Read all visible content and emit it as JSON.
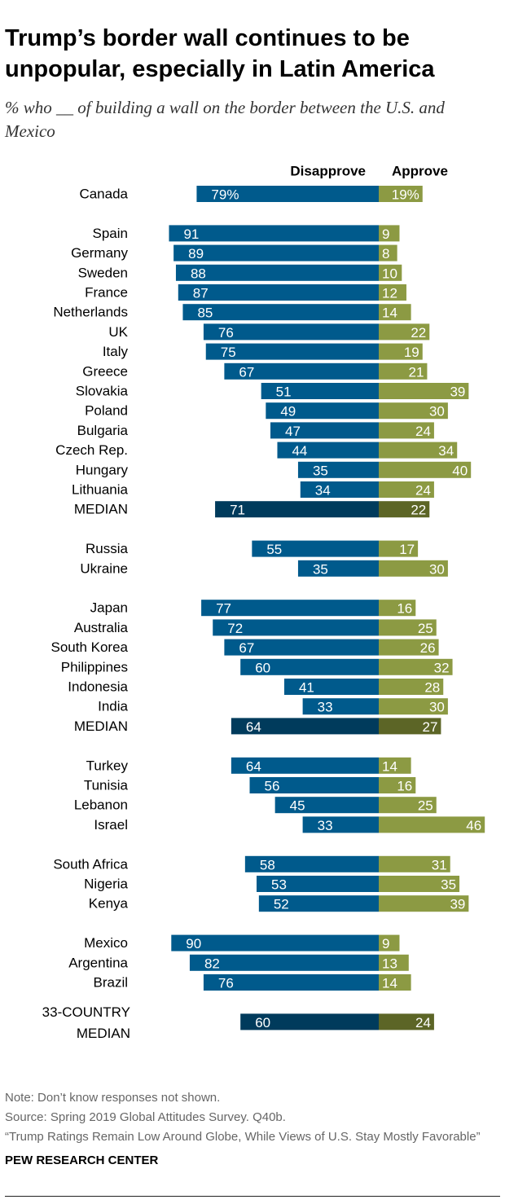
{
  "header": {
    "title": "Trump’s border wall continues to be unpopular, especially in Latin America",
    "subtitle": "% who __ of building a wall on the border between the U.S. and Mexico"
  },
  "footer": {
    "note": "Note: Don’t know responses not shown.",
    "source": "Source: Spring 2019 Global Attitudes Survey. Q40b.",
    "report": "“Trump Ratings Remain Low Around Globe, While Views of U.S. Stay Mostly Favorable”",
    "organization": "PEW RESEARCH CENTER"
  },
  "chart_data": {
    "type": "bar",
    "orientation": "horizontal-diverging",
    "unit": "%",
    "series": [
      {
        "name": "Disapprove",
        "color": "#005a8c",
        "median_color": "#003b5c"
      },
      {
        "name": "Approve",
        "color": "#8c9a43",
        "median_color": "#5c6526"
      }
    ],
    "groups": [
      {
        "rows": [
          {
            "label": "Canada",
            "disapprove": 79,
            "approve": 19,
            "disapprove_label": "79%",
            "approve_label": "19%"
          }
        ]
      },
      {
        "rows": [
          {
            "label": "Spain",
            "disapprove": 91,
            "approve": 9
          },
          {
            "label": "Germany",
            "disapprove": 89,
            "approve": 8
          },
          {
            "label": "Sweden",
            "disapprove": 88,
            "approve": 10
          },
          {
            "label": "France",
            "disapprove": 87,
            "approve": 12
          },
          {
            "label": "Netherlands",
            "disapprove": 85,
            "approve": 14
          },
          {
            "label": "UK",
            "disapprove": 76,
            "approve": 22
          },
          {
            "label": "Italy",
            "disapprove": 75,
            "approve": 19
          },
          {
            "label": "Greece",
            "disapprove": 67,
            "approve": 21
          },
          {
            "label": "Slovakia",
            "disapprove": 51,
            "approve": 39
          },
          {
            "label": "Poland",
            "disapprove": 49,
            "approve": 30
          },
          {
            "label": "Bulgaria",
            "disapprove": 47,
            "approve": 24
          },
          {
            "label": "Czech Rep.",
            "disapprove": 44,
            "approve": 34
          },
          {
            "label": "Hungary",
            "disapprove": 35,
            "approve": 40
          },
          {
            "label": "Lithuania",
            "disapprove": 34,
            "approve": 24
          },
          {
            "label": "MEDIAN",
            "disapprove": 71,
            "approve": 22,
            "median": true
          }
        ]
      },
      {
        "rows": [
          {
            "label": "Russia",
            "disapprove": 55,
            "approve": 17
          },
          {
            "label": "Ukraine",
            "disapprove": 35,
            "approve": 30
          }
        ]
      },
      {
        "rows": [
          {
            "label": "Japan",
            "disapprove": 77,
            "approve": 16
          },
          {
            "label": "Australia",
            "disapprove": 72,
            "approve": 25
          },
          {
            "label": "South Korea",
            "disapprove": 67,
            "approve": 26
          },
          {
            "label": "Philippines",
            "disapprove": 60,
            "approve": 32
          },
          {
            "label": "Indonesia",
            "disapprove": 41,
            "approve": 28
          },
          {
            "label": "India",
            "disapprove": 33,
            "approve": 30
          },
          {
            "label": "MEDIAN",
            "disapprove": 64,
            "approve": 27,
            "median": true
          }
        ]
      },
      {
        "rows": [
          {
            "label": "Turkey",
            "disapprove": 64,
            "approve": 14
          },
          {
            "label": "Tunisia",
            "disapprove": 56,
            "approve": 16
          },
          {
            "label": "Lebanon",
            "disapprove": 45,
            "approve": 25
          },
          {
            "label": "Israel",
            "disapprove": 33,
            "approve": 46
          }
        ]
      },
      {
        "rows": [
          {
            "label": "South Africa",
            "disapprove": 58,
            "approve": 31
          },
          {
            "label": "Nigeria",
            "disapprove": 53,
            "approve": 35
          },
          {
            "label": "Kenya",
            "disapprove": 52,
            "approve": 39
          }
        ]
      },
      {
        "rows": [
          {
            "label": "Mexico",
            "disapprove": 90,
            "approve": 9
          },
          {
            "label": "Argentina",
            "disapprove": 82,
            "approve": 13
          },
          {
            "label": "Brazil",
            "disapprove": 76,
            "approve": 14
          }
        ]
      },
      {
        "rows": [
          {
            "label": "33-COUNTRY",
            "label2": "MEDIAN",
            "disapprove": 60,
            "approve": 24,
            "median": true
          }
        ]
      }
    ]
  }
}
